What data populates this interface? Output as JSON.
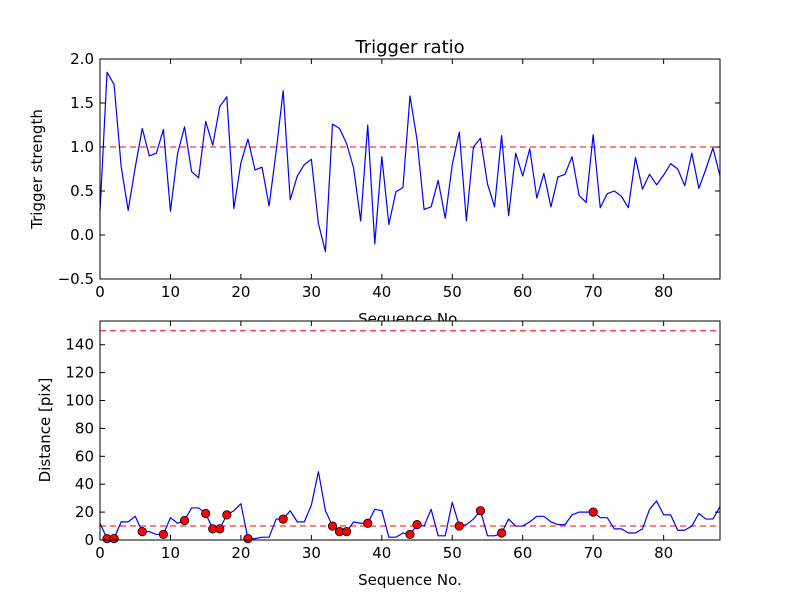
{
  "chart_data": [
    {
      "type": "line",
      "title": "Trigger ratio",
      "xlabel": "Sequence No.",
      "ylabel": "Trigger strength",
      "xlim": [
        0,
        88
      ],
      "ylim": [
        -0.5,
        2.0
      ],
      "xticks": [
        0,
        10,
        20,
        30,
        40,
        50,
        60,
        70,
        80
      ],
      "yticks": [
        -0.5,
        0.0,
        0.5,
        1.0,
        1.5,
        2.0
      ],
      "ytick_labels": [
        "−0.5",
        "0.0",
        "0.5",
        "1.0",
        "1.5",
        "2.0"
      ],
      "grid": false,
      "series": [
        {
          "color": "#0000ff",
          "x": [
            0,
            1,
            2,
            3,
            4,
            5,
            6,
            7,
            8,
            9,
            10,
            11,
            12,
            13,
            14,
            15,
            16,
            17,
            18,
            19,
            20,
            21,
            22,
            23,
            24,
            25,
            26,
            27,
            28,
            29,
            30,
            31,
            32,
            33,
            34,
            35,
            36,
            37,
            38,
            39,
            40,
            41,
            42,
            43,
            44,
            45,
            46,
            47,
            48,
            49,
            50,
            51,
            52,
            53,
            54,
            55,
            56,
            57,
            58,
            59,
            60,
            61,
            62,
            63,
            64,
            65,
            66,
            67,
            68,
            69,
            70,
            71,
            72,
            73,
            74,
            75,
            76,
            77,
            78,
            79,
            80,
            81,
            82,
            83,
            84,
            85,
            86,
            87,
            88
          ],
          "y": [
            0.27,
            1.85,
            1.71,
            0.78,
            0.28,
            0.77,
            1.21,
            0.9,
            0.93,
            1.2,
            0.27,
            0.92,
            1.23,
            0.72,
            0.65,
            1.29,
            1.02,
            1.46,
            1.57,
            0.3,
            0.82,
            1.09,
            0.74,
            0.77,
            0.33,
            0.95,
            1.64,
            0.4,
            0.67,
            0.8,
            0.86,
            0.13,
            -0.19,
            1.26,
            1.21,
            1.04,
            0.76,
            0.16,
            1.25,
            -0.1,
            0.89,
            0.12,
            0.49,
            0.54,
            1.58,
            1.08,
            0.29,
            0.32,
            0.62,
            0.19,
            0.8,
            1.17,
            0.16,
            1.0,
            1.1,
            0.58,
            0.32,
            1.13,
            0.22,
            0.93,
            0.67,
            0.98,
            0.42,
            0.7,
            0.32,
            0.66,
            0.69,
            0.89,
            0.45,
            0.37,
            1.14,
            0.31,
            0.47,
            0.5,
            0.44,
            0.31,
            0.88,
            0.52,
            0.69,
            0.57,
            0.68,
            0.81,
            0.75,
            0.56,
            0.93,
            0.53,
            0.75,
            0.99,
            0.67
          ]
        }
      ],
      "hlines": [
        {
          "y": 1.0,
          "style": "dashed",
          "color": "#ff0000"
        }
      ]
    },
    {
      "type": "line",
      "title": "",
      "xlabel": "Sequence No.",
      "ylabel": "Distance [pix]",
      "xlim": [
        0,
        88
      ],
      "ylim": [
        0,
        157
      ],
      "xticks": [
        0,
        10,
        20,
        30,
        40,
        50,
        60,
        70,
        80
      ],
      "yticks": [
        0,
        20,
        40,
        60,
        80,
        100,
        120,
        140
      ],
      "ytick_labels": [
        "0",
        "20",
        "40",
        "60",
        "80",
        "100",
        "120",
        "140"
      ],
      "grid": false,
      "series": [
        {
          "color": "#0000ff",
          "x": [
            0,
            1,
            2,
            3,
            4,
            5,
            6,
            7,
            8,
            9,
            10,
            11,
            12,
            13,
            14,
            15,
            16,
            17,
            18,
            19,
            20,
            21,
            22,
            23,
            24,
            25,
            26,
            27,
            28,
            29,
            30,
            31,
            32,
            33,
            34,
            35,
            36,
            37,
            38,
            39,
            40,
            41,
            42,
            43,
            44,
            45,
            46,
            47,
            48,
            49,
            50,
            51,
            52,
            53,
            54,
            55,
            56,
            57,
            58,
            59,
            60,
            61,
            62,
            63,
            64,
            65,
            66,
            67,
            68,
            69,
            70,
            71,
            72,
            73,
            74,
            75,
            76,
            77,
            78,
            79,
            80,
            81,
            82,
            83,
            84,
            85,
            86,
            87,
            88
          ],
          "y": [
            12,
            1,
            1,
            13,
            13,
            17,
            6,
            6,
            4,
            4,
            16,
            12,
            14,
            23,
            23,
            19,
            8,
            8,
            18,
            21,
            26,
            1,
            1,
            2,
            2,
            15,
            15,
            21,
            13,
            13,
            25,
            49,
            21,
            10,
            6,
            6,
            13,
            12,
            12,
            22,
            21,
            2,
            2,
            5,
            4,
            11,
            10,
            22,
            3,
            3,
            27,
            10,
            11,
            15,
            21,
            3,
            3,
            5,
            15,
            10,
            10,
            13,
            17,
            17,
            13,
            11,
            11,
            18,
            20,
            20,
            20,
            16,
            16,
            8,
            8,
            5,
            5,
            8,
            22,
            28,
            18,
            18,
            7,
            7,
            10,
            19,
            15,
            15,
            24
          ]
        }
      ],
      "markers": {
        "color": "#ff0000",
        "x": [
          1,
          2,
          6,
          9,
          12,
          15,
          16,
          17,
          18,
          21,
          26,
          33,
          34,
          35,
          38,
          44,
          45,
          51,
          54,
          57,
          70
        ],
        "y": [
          1,
          1,
          6,
          4,
          14,
          19,
          8,
          8,
          18,
          1,
          15,
          10,
          6,
          6,
          12,
          4,
          11,
          10,
          21,
          5,
          20
        ]
      },
      "hlines": [
        {
          "y": 150,
          "style": "dashed",
          "color": "#ff0000"
        },
        {
          "y": 10,
          "style": "dashed",
          "color": "#ff0000"
        }
      ]
    }
  ]
}
